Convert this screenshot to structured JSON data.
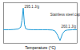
{
  "chart_data": {
    "type": "line",
    "x_label": "Temperature (°C)",
    "x": [
      100,
      120,
      140,
      160,
      170,
      175,
      180,
      185,
      190,
      200,
      220,
      240,
      260,
      280,
      300,
      310,
      320,
      330,
      340,
      350,
      360,
      380,
      400
    ],
    "series": [
      {
        "name": "Stainless steel capsule test",
        "color": "#1f9bd7",
        "values": [
          0,
          0,
          0.1,
          0.3,
          1.0,
          3.5,
          8,
          2,
          0.4,
          0.1,
          0,
          0,
          0,
          0,
          -0.1,
          -0.5,
          -2.0,
          -4.0,
          -1.5,
          -0.3,
          -0.1,
          0,
          0
        ]
      }
    ],
    "xlim": [
      100,
      400
    ],
    "ylim": [
      -5,
      10
    ],
    "tick_labels": false,
    "annotations": [
      {
        "text": "295.1 J/g",
        "x": 185,
        "y": 8.5
      },
      {
        "text": "Stainless steel capsule test",
        "x": 290,
        "y": 5.5
      },
      {
        "text": "260.1 J/g",
        "x": 335,
        "y": 1.2
      }
    ]
  }
}
